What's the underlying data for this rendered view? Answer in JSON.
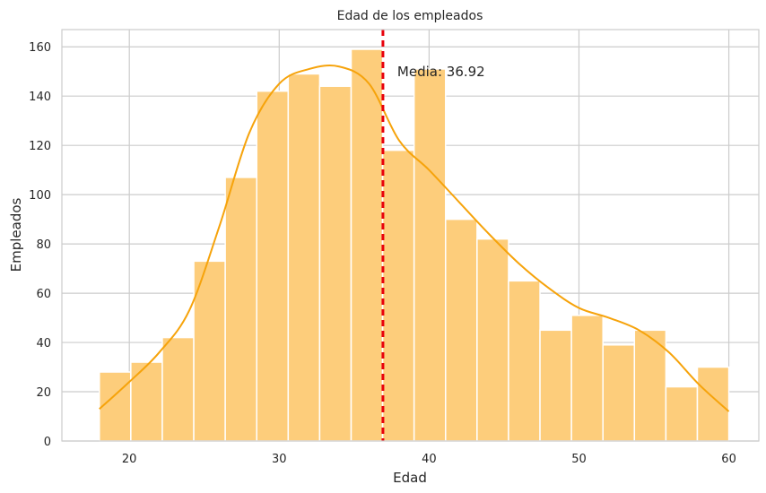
{
  "chart_data": {
    "type": "bar",
    "title": "Edad de los empleados",
    "xlabel": "Edad",
    "ylabel": "Empleados",
    "xlim": [
      15.5,
      62
    ],
    "ylim": [
      0,
      167
    ],
    "x_ticks": [
      20,
      30,
      40,
      50,
      60
    ],
    "y_ticks": [
      0,
      20,
      40,
      60,
      80,
      100,
      120,
      140,
      160
    ],
    "grid": true,
    "bin_edges": [
      18,
      20.1,
      22.2,
      24.3,
      26.4,
      28.5,
      30.6,
      32.7,
      34.8,
      36.9,
      39,
      41.1,
      43.2,
      45.3,
      47.4,
      49.5,
      51.6,
      53.7,
      55.8,
      57.9,
      60
    ],
    "counts": [
      28,
      32,
      42,
      73,
      107,
      142,
      149,
      144,
      159,
      118,
      151,
      90,
      82,
      65,
      45,
      51,
      39,
      45,
      22,
      30
    ],
    "kde": {
      "x": [
        18,
        20,
        22,
        24,
        26,
        28,
        30,
        32,
        34,
        36,
        38,
        40,
        42,
        44,
        46,
        48,
        50,
        52,
        54,
        56,
        58,
        60
      ],
      "y": [
        13,
        24,
        36,
        53,
        87,
        125,
        145,
        151,
        152,
        145,
        122,
        110,
        97,
        84,
        72,
        62,
        54,
        50,
        45,
        36,
        23,
        12
      ]
    },
    "mean_line": {
      "x": 36.92,
      "label": "Media: 36.92"
    },
    "colors": {
      "bar_fill": "#fdcd7b",
      "bar_edge": "#ffffff",
      "kde_line": "#f6a30b",
      "mean_line": "#e8000b",
      "grid": "#cccccc",
      "axis_edge": "#cccccc"
    }
  }
}
